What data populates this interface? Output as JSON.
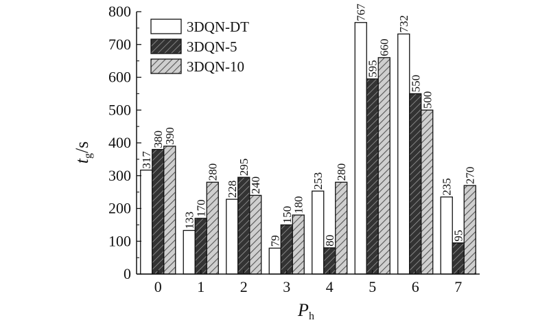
{
  "chart_data": {
    "type": "bar",
    "xlabel": "P",
    "xlabel_sub": "h",
    "ylabel": "t",
    "ylabel_sub": "g",
    "ylabel_unit": "/s",
    "categories": [
      "0",
      "1",
      "2",
      "3",
      "4",
      "5",
      "6",
      "7"
    ],
    "ylim": [
      0,
      800
    ],
    "yticks": [
      "0",
      "100",
      "200",
      "300",
      "400",
      "500",
      "600",
      "700",
      "800"
    ],
    "series": [
      {
        "name": "3DQN-DT",
        "values": [
          317,
          133,
          228,
          79,
          253,
          767,
          732,
          235
        ],
        "fill": "white"
      },
      {
        "name": "3DQN-5",
        "values": [
          380,
          170,
          295,
          150,
          80,
          595,
          550,
          95
        ],
        "fill": "dark-hatch"
      },
      {
        "name": "3DQN-10",
        "values": [
          390,
          280,
          240,
          180,
          280,
          660,
          500,
          270
        ],
        "fill": "light-hatch"
      }
    ],
    "data_labels": [
      [
        "317",
        "133",
        "228",
        "79",
        "253",
        "767",
        "732",
        "235"
      ],
      [
        "380",
        "170",
        "295",
        "150",
        "80",
        "595",
        "550",
        "95"
      ],
      [
        "390",
        "280",
        "240",
        "180",
        "280",
        "660",
        "500",
        "270"
      ]
    ],
    "legend_position": "top-left",
    "grid": false,
    "colors": {
      "ink": "#111111",
      "dark_fill": "#3a3a3a",
      "light_fill": "#b5b5b5"
    }
  }
}
